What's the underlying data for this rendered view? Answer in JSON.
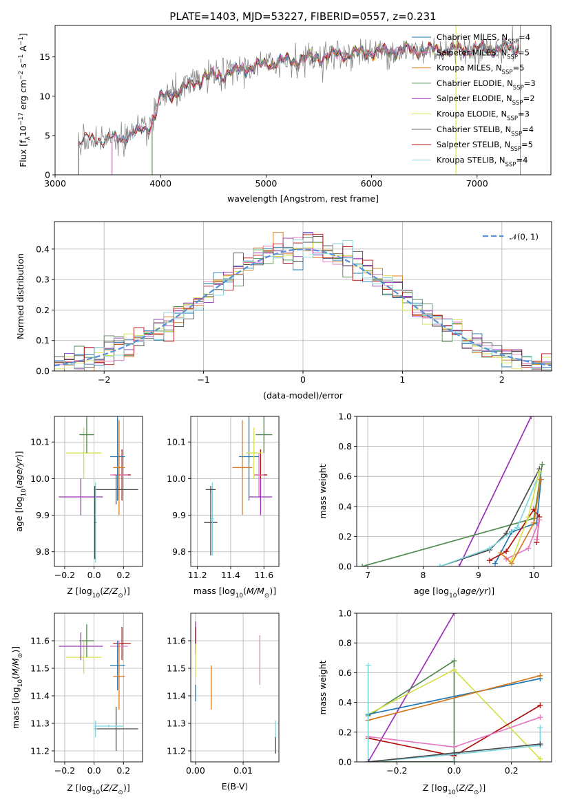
{
  "title": "PLATE=1403, MJD=53227, FIBERID=0557, z=0.231",
  "colors": {
    "chabrier_miles": "#1f77b4",
    "salpeter_miles": "#e377c2",
    "kroupa_miles": "#d4781c",
    "chabrier_elodie": "#4f8a4f",
    "salpeter_elodie": "#9b30b8",
    "kroupa_elodie": "#d6e04a",
    "chabrier_stelib": "#4a4a4a",
    "salpeter_stelib": "#b01010",
    "kroupa_stelib": "#7fd6e0",
    "gauss": "#5b8fd6",
    "data": "#888888"
  },
  "chart_data": [
    {
      "id": "spectrum",
      "type": "line",
      "xlabel": "wavelength [Angstrom, rest frame]",
      "ylabel": "Flux [f_λ 10^-17 erg cm^-2 s^-1 A^-1]",
      "xlim": [
        3000,
        7700
      ],
      "ylim": [
        0,
        19
      ],
      "xticks": [
        "3000",
        "4000",
        "5000",
        "6000",
        "7000"
      ],
      "yticks": [
        "0",
        "5",
        "10",
        "15"
      ],
      "legend_position": "upper right",
      "legend": [
        {
          "key": "chabrier_miles",
          "label": "Chabrier MILES, N",
          "sub": "SSP",
          "suffix": "=4"
        },
        {
          "key": "salpeter_miles",
          "label": "Salpeter MILES, N",
          "sub": "SSP",
          "suffix": "=5"
        },
        {
          "key": "kroupa_miles",
          "label": "Kroupa MILES, N",
          "sub": "SSP",
          "suffix": "=5"
        },
        {
          "key": "chabrier_elodie",
          "label": "Chabrier ELODIE, N",
          "sub": "SSP",
          "suffix": "=3"
        },
        {
          "key": "salpeter_elodie",
          "label": "Salpeter ELODIE, N",
          "sub": "SSP",
          "suffix": "=2"
        },
        {
          "key": "kroupa_elodie",
          "label": "Kroupa ELODIE, N",
          "sub": "SSP",
          "suffix": "=3"
        },
        {
          "key": "chabrier_stelib",
          "label": "Chabrier STELIB, N",
          "sub": "SSP",
          "suffix": "=4"
        },
        {
          "key": "salpeter_stelib",
          "label": "Salpeter STELIB, N",
          "sub": "SSP",
          "suffix": "=5"
        },
        {
          "key": "kroupa_stelib",
          "label": "Kroupa STELIB, N",
          "sub": "SSP",
          "suffix": "=4"
        }
      ],
      "continuum": [
        [
          3220,
          4.2
        ],
        [
          3300,
          4.5
        ],
        [
          3600,
          4.6
        ],
        [
          3750,
          5.2
        ],
        [
          3900,
          6.2
        ],
        [
          3960,
          8.0
        ],
        [
          4000,
          9.8
        ],
        [
          4200,
          10.8
        ],
        [
          4400,
          12.3
        ],
        [
          4600,
          12.8
        ],
        [
          4800,
          13.6
        ],
        [
          5000,
          14.0
        ],
        [
          5200,
          14.5
        ],
        [
          5400,
          14.8
        ],
        [
          5600,
          15.1
        ],
        [
          5800,
          15.4
        ],
        [
          6000,
          15.6
        ],
        [
          6200,
          15.8
        ],
        [
          6400,
          15.8
        ],
        [
          6600,
          15.9
        ],
        [
          6800,
          15.9
        ],
        [
          7000,
          16.0
        ],
        [
          7200,
          16.1
        ],
        [
          7400,
          16.2
        ]
      ]
    },
    {
      "id": "residuals",
      "type": "line",
      "xlabel": "(data-model)/error",
      "ylabel": "Normed distribution",
      "xlim": [
        -2.5,
        2.5
      ],
      "ylim": [
        0,
        0.49
      ],
      "xticks": [
        "−2",
        "−1",
        "0",
        "1",
        "2"
      ],
      "yticks": [
        "0.0",
        "0.1",
        "0.2",
        "0.3",
        "0.4"
      ],
      "legend_label": "𝒩(0, 1)",
      "bin_width": 0.1
    },
    {
      "id": "age_vs_Z",
      "type": "scatter",
      "xlabel": "Z [log10(Z/Z⊙)]",
      "ylabel": "age [log10(age/yr)]",
      "xlim": [
        -0.27,
        0.33
      ],
      "ylim": [
        9.76,
        10.17
      ],
      "xticks": [
        "−0.2",
        "0.0",
        "0.2"
      ],
      "xtick_vals": [
        -0.2,
        0.0,
        0.2
      ],
      "yticks": [
        "9.8",
        "9.9",
        "10.0",
        "10.1"
      ],
      "ytick_vals": [
        9.8,
        9.9,
        10.0,
        10.1
      ],
      "points": [
        {
          "c": "salpeter_stelib",
          "x": 0.19,
          "y": 10.01,
          "xe": 0.06,
          "ye": 0.07
        },
        {
          "c": "salpeter_miles",
          "x": 0.17,
          "y": 10.01,
          "xe": 0.06,
          "ye": 0.06
        },
        {
          "c": "chabrier_miles",
          "x": 0.16,
          "y": 10.06,
          "xe": 0.05,
          "ye": 0.12
        },
        {
          "c": "kroupa_miles",
          "x": 0.17,
          "y": 10.03,
          "xe": 0.04,
          "ye": 0.13
        },
        {
          "c": "chabrier_stelib",
          "x": 0.15,
          "y": 9.97,
          "xe": 0.15,
          "ye": 0.04
        },
        {
          "c": "kroupa_elodie",
          "x": -0.07,
          "y": 10.07,
          "xe": 0.12,
          "ye": 0.07
        },
        {
          "c": "chabrier_elodie",
          "x": -0.05,
          "y": 10.12,
          "xe": 0.05,
          "ye": 0.05
        },
        {
          "c": "salpeter_elodie",
          "x": -0.09,
          "y": 9.95,
          "xe": 0.15,
          "ye": 0.05
        },
        {
          "c": "kroupa_stelib",
          "x": 0.01,
          "y": 9.88,
          "xe": 0.01,
          "ye": 0.11
        },
        {
          "c": "chabrier_stelib",
          "x": 0.005,
          "y": 9.88,
          "xe": 0.005,
          "ye": 0.1
        }
      ]
    },
    {
      "id": "age_vs_mass",
      "type": "scatter",
      "xlabel": "mass [log10(M/M⊙)]",
      "ylabel": "",
      "xlim": [
        11.16,
        11.69
      ],
      "ylim": [
        9.76,
        10.17
      ],
      "xticks": [
        "11.2",
        "11.4",
        "11.6"
      ],
      "xtick_vals": [
        11.2,
        11.4,
        11.6
      ],
      "yticks": [
        "9.8",
        "9.9",
        "10.0",
        "10.1"
      ],
      "ytick_vals": [
        9.8,
        9.9,
        10.0,
        10.1
      ],
      "points": [
        {
          "c": "salpeter_stelib",
          "x": 11.58,
          "y": 10.01,
          "xe": 0.04,
          "ye": 0.07
        },
        {
          "c": "salpeter_miles",
          "x": 11.57,
          "y": 10.01,
          "xe": 0.03,
          "ye": 0.06
        },
        {
          "c": "chabrier_miles",
          "x": 11.51,
          "y": 10.06,
          "xe": 0.06,
          "ye": 0.12
        },
        {
          "c": "kroupa_miles",
          "x": 11.47,
          "y": 10.03,
          "xe": 0.06,
          "ye": 0.13
        },
        {
          "c": "kroupa_elodie",
          "x": 11.54,
          "y": 10.07,
          "xe": 0.05,
          "ye": 0.07
        },
        {
          "c": "chabrier_elodie",
          "x": 11.6,
          "y": 10.12,
          "xe": 0.05,
          "ye": 0.05
        },
        {
          "c": "salpeter_elodie",
          "x": 11.58,
          "y": 9.95,
          "xe": 0.07,
          "ye": 0.05
        },
        {
          "c": "chabrier_stelib",
          "x": 11.28,
          "y": 9.88,
          "xe": 0.04,
          "ye": 0.09
        },
        {
          "c": "kroupa_stelib",
          "x": 11.29,
          "y": 9.89,
          "xe": 0.01,
          "ye": 0.1
        },
        {
          "c": "chabrier_stelib",
          "x": 11.28,
          "y": 9.97,
          "xe": 0.03,
          "ye": 0.01
        }
      ]
    },
    {
      "id": "mass_weight_vs_age",
      "type": "line",
      "xlabel": "age [log10(age/yr)]",
      "ylabel": "mass weight",
      "xlim": [
        6.8,
        10.32
      ],
      "ylim": [
        0,
        1.0
      ],
      "xticks": [
        "7",
        "8",
        "9",
        "10"
      ],
      "xtick_vals": [
        7,
        8,
        9,
        10
      ],
      "yticks": [
        "0.0",
        "0.2",
        "0.4",
        "0.6",
        "0.8",
        "1.0"
      ],
      "ytick_vals": [
        0,
        0.2,
        0.4,
        0.6,
        0.8,
        1.0
      ],
      "series": [
        {
          "c": "salpeter_elodie",
          "x": [
            8.65,
            9.95
          ],
          "y": [
            0.0,
            1.0
          ]
        },
        {
          "c": "chabrier_elodie",
          "x": [
            6.9,
            10.0,
            10.15
          ],
          "y": [
            0.0,
            0.32,
            0.68
          ]
        },
        {
          "c": "chabrier_stelib",
          "x": [
            8.3,
            9.2,
            9.5,
            10.1
          ],
          "y": [
            0.0,
            0.11,
            0.22,
            0.65
          ]
        },
        {
          "c": "chabrier_miles",
          "x": [
            9.3,
            9.6,
            10.05,
            10.13
          ],
          "y": [
            0.02,
            0.23,
            0.29,
            0.58
          ]
        },
        {
          "c": "kroupa_stelib",
          "x": [
            8.3,
            9.2,
            9.7,
            10.1
          ],
          "y": [
            0.0,
            0.12,
            0.26,
            0.62
          ]
        },
        {
          "c": "salpeter_stelib",
          "x": [
            9.2,
            9.5,
            10.0,
            10.1,
            10.05
          ],
          "y": [
            0.04,
            0.1,
            0.38,
            0.33,
            0.16
          ]
        },
        {
          "c": "salpeter_miles",
          "x": [
            9.5,
            9.9,
            10.1,
            10.05
          ],
          "y": [
            0.05,
            0.12,
            0.31,
            0.18
          ]
        },
        {
          "c": "kroupa_miles",
          "x": [
            9.4,
            9.6,
            10.0,
            10.12
          ],
          "y": [
            0.09,
            0.02,
            0.29,
            0.58
          ]
        },
        {
          "c": "kroupa_elodie",
          "x": [
            9.6,
            9.9,
            10.1
          ],
          "y": [
            0.04,
            0.33,
            0.63
          ]
        }
      ]
    },
    {
      "id": "mass_vs_Z",
      "type": "scatter",
      "xlabel": "Z [log10(Z/Z⊙)]",
      "ylabel": "mass [log10(M/M⊙)]",
      "xlim": [
        -0.27,
        0.33
      ],
      "ylim": [
        11.16,
        11.7
      ],
      "xticks": [
        "−0.2",
        "0.0",
        "0.2"
      ],
      "xtick_vals": [
        -0.2,
        0.0,
        0.2
      ],
      "yticks": [
        "11.2",
        "11.3",
        "11.4",
        "11.5",
        "11.6"
      ],
      "ytick_vals": [
        11.2,
        11.3,
        11.4,
        11.5,
        11.6
      ],
      "points": [
        {
          "c": "salpeter_stelib",
          "x": 0.19,
          "y": 11.59,
          "xe": 0.06,
          "ye": 0.06
        },
        {
          "c": "salpeter_miles",
          "x": 0.17,
          "y": 11.58,
          "xe": 0.06,
          "ye": 0.02
        },
        {
          "c": "chabrier_miles",
          "x": 0.16,
          "y": 11.51,
          "xe": 0.05,
          "ye": 0.09
        },
        {
          "c": "kroupa_miles",
          "x": 0.17,
          "y": 11.47,
          "xe": 0.04,
          "ye": 0.12
        },
        {
          "c": "kroupa_elodie",
          "x": -0.07,
          "y": 11.54,
          "xe": 0.12,
          "ye": 0.06
        },
        {
          "c": "chabrier_elodie",
          "x": -0.05,
          "y": 11.6,
          "xe": 0.05,
          "ye": 0.06
        },
        {
          "c": "salpeter_elodie",
          "x": -0.09,
          "y": 11.58,
          "xe": 0.15,
          "ye": 0.05
        },
        {
          "c": "chabrier_stelib",
          "x": 0.15,
          "y": 11.28,
          "xe": 0.15,
          "ye": 0.08
        },
        {
          "c": "kroupa_stelib",
          "x": 0.01,
          "y": 11.28,
          "xe": 0.01,
          "ye": 0.03
        },
        {
          "c": "kroupa_stelib",
          "x": 0.1,
          "y": 11.29,
          "xe": 0.1,
          "ye": 0.005
        }
      ]
    },
    {
      "id": "mass_vs_ebv",
      "type": "scatter",
      "xlabel": "E(B-V)",
      "ylabel": "",
      "xlim": [
        -0.001,
        0.0175
      ],
      "ylim": [
        11.16,
        11.7
      ],
      "xticks": [
        "0.00",
        "0.01"
      ],
      "xtick_vals": [
        0.0,
        0.01
      ],
      "yticks": [
        "11.2",
        "11.3",
        "11.4",
        "11.5",
        "11.6"
      ],
      "ytick_vals": [
        11.2,
        11.3,
        11.4,
        11.5,
        11.6
      ],
      "points": [
        {
          "c": "salpeter_elodie",
          "x": 0.0,
          "y": 11.62,
          "xe": 0,
          "ye": 0.05
        },
        {
          "c": "salpeter_stelib",
          "x": 0.0,
          "y": 11.6,
          "xe": 0,
          "ye": 0.05
        },
        {
          "c": "kroupa_elodie",
          "x": 0.0,
          "y": 11.53,
          "xe": 0,
          "ye": 0.06
        },
        {
          "c": "chabrier_miles",
          "x": 0.0,
          "y": 11.41,
          "xe": 0,
          "ye": 0.03
        },
        {
          "c": "kroupa_miles",
          "x": 0.0033,
          "y": 11.43,
          "xe": 0,
          "ye": 0.08
        },
        {
          "c": "salpeter_miles",
          "x": 0.0135,
          "y": 11.53,
          "xe": 0,
          "ye": 0.09
        },
        {
          "c": "kroupa_stelib",
          "x": 0.0168,
          "y": 11.25,
          "xe": 0,
          "ye": 0.06
        },
        {
          "c": "chabrier_stelib",
          "x": 0.0168,
          "y": 11.22,
          "xe": 0,
          "ye": 0.03
        }
      ]
    },
    {
      "id": "mass_weight_vs_Z",
      "type": "line",
      "xlabel": "Z [log10(Z/Z⊙)]",
      "ylabel": "mass weight",
      "xlim": [
        -0.34,
        0.34
      ],
      "ylim": [
        0,
        1.0
      ],
      "xticks": [
        "−0.2",
        "0.0",
        "0.2"
      ],
      "xtick_vals": [
        -0.2,
        0.0,
        0.2
      ],
      "yticks": [
        "0.0",
        "0.2",
        "0.4",
        "0.6",
        "0.8",
        "1.0"
      ],
      "ytick_vals": [
        0,
        0.2,
        0.4,
        0.6,
        0.8,
        1.0
      ],
      "series": [
        {
          "c": "salpeter_elodie",
          "x": [
            -0.3,
            0.0
          ],
          "y": [
            0.0,
            1.0
          ]
        },
        {
          "c": "chabrier_elodie",
          "x": [
            -0.3,
            0.0,
            0.0,
            -0.3
          ],
          "y": [
            0.31,
            0.68,
            0.0,
            0.0
          ]
        },
        {
          "c": "kroupa_elodie",
          "x": [
            -0.3,
            0.0,
            0.3
          ],
          "y": [
            0.32,
            0.62,
            0.02
          ]
        },
        {
          "c": "chabrier_miles",
          "x": [
            -0.3,
            0.3
          ],
          "y": [
            0.32,
            0.56
          ]
        },
        {
          "c": "kroupa_miles",
          "x": [
            -0.3,
            0.3
          ],
          "y": [
            0.28,
            0.58
          ]
        },
        {
          "c": "salpeter_stelib",
          "x": [
            -0.3,
            0.0,
            0.3
          ],
          "y": [
            0.16,
            0.04,
            0.38
          ]
        },
        {
          "c": "salpeter_miles",
          "x": [
            -0.3,
            0.0,
            0.3
          ],
          "y": [
            0.17,
            0.1,
            0.3
          ]
        },
        {
          "c": "kroupa_stelib",
          "x": [
            -0.3,
            -0.3,
            0.0,
            0.3,
            0.3
          ],
          "y": [
            0.65,
            0.0,
            0.05,
            0.11,
            0.23
          ]
        },
        {
          "c": "chabrier_stelib",
          "x": [
            -0.3,
            0.0,
            0.3
          ],
          "y": [
            0.0,
            0.06,
            0.12
          ]
        }
      ]
    }
  ]
}
